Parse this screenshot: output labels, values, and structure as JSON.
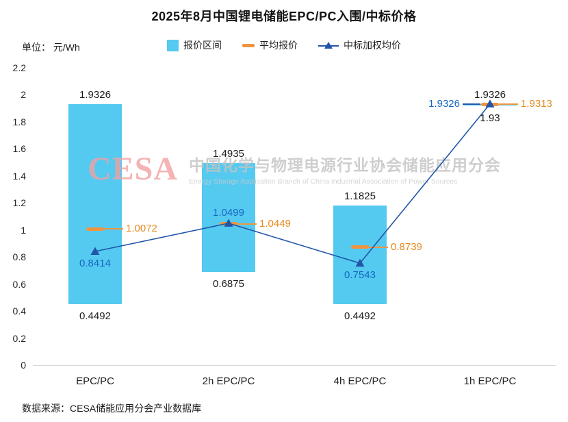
{
  "title": "2025年8月中国锂电储能EPC/PC入围/中标价格",
  "unit_label": "单位： 元/Wh",
  "legend": [
    {
      "label": "报价区间",
      "type": "bar-swatch"
    },
    {
      "label": "平均报价",
      "type": "dash-swatch"
    },
    {
      "label": "中标加权均价",
      "type": "line-triangle-swatch"
    }
  ],
  "watermark": {
    "logo_text": "CESA",
    "cn_text": "中国化学与物理电源行业协会储能应用分会",
    "en_text": "Energy Storage Application Branch of China Industrial Association of Power Sources"
  },
  "source_text": "数据来源：CESA储能应用分会产业数据库",
  "colors": {
    "bar_fill": "#55CAF1",
    "avg_dash": "#F0953F",
    "avg_label": "#E78A1D",
    "weighted_blue": "#2155A8",
    "weighted_label_blue": "#1566C4",
    "label_dark": "#1c1c1c",
    "axis_line": "#D9D9D9"
  },
  "chart_data": {
    "type": "bar",
    "subtype": "floating range bars with average-price dash markers and weighted-average line",
    "title": "2025年8月中国锂电储能EPC/PC入围/中标价格",
    "ylabel": "元/Wh",
    "categories": [
      "EPC/PC",
      "2h EPC/PC",
      "4h EPC/PC",
      "1h EPC/PC"
    ],
    "series": [
      {
        "name": "报价区间",
        "type": "range-bar",
        "low": [
          0.4492,
          0.6875,
          0.4492,
          1.93
        ],
        "high": [
          1.9326,
          1.4935,
          1.1825,
          1.9326
        ],
        "low_labels": [
          "0.4492",
          "0.6875",
          "0.4492",
          "1.93"
        ],
        "high_labels": [
          "1.9326",
          "1.4935",
          "1.1825",
          "1.9326"
        ]
      },
      {
        "name": "平均报价",
        "type": "dash-marker",
        "values": [
          1.0072,
          1.0449,
          0.8739,
          1.9313
        ],
        "labels": [
          "1.0072",
          "1.0449",
          "0.8739",
          "1.9313"
        ]
      },
      {
        "name": "中标加权均价",
        "type": "line-with-triangle-markers",
        "values": [
          0.8414,
          1.0499,
          0.7543,
          1.9326
        ],
        "labels": [
          "0.8414",
          "1.0499",
          "0.7543",
          "1.9326"
        ],
        "label_positions": [
          "below",
          "above",
          "below",
          "left"
        ]
      }
    ],
    "ylim": [
      0,
      2.2
    ],
    "ytick_step": 0.2,
    "grid": false,
    "legend_position": "top-center"
  }
}
